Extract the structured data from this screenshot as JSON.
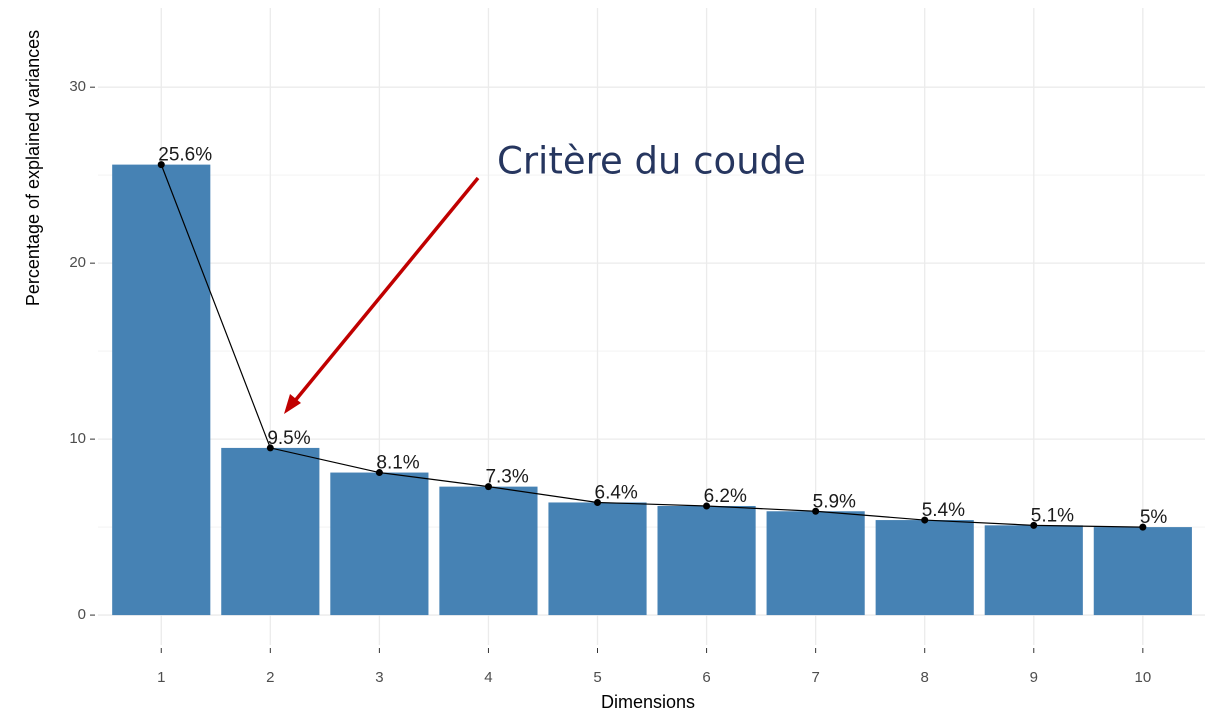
{
  "chart_data": {
    "type": "bar",
    "categories": [
      "1",
      "2",
      "3",
      "4",
      "5",
      "6",
      "7",
      "8",
      "9",
      "10"
    ],
    "values": [
      25.6,
      9.5,
      8.1,
      7.3,
      6.4,
      6.2,
      5.9,
      5.4,
      5.1,
      5
    ],
    "value_labels": [
      "25.6%",
      "9.5%",
      "8.1%",
      "7.3%",
      "6.4%",
      "6.2%",
      "5.9%",
      "5.4%",
      "5.1%",
      "5%"
    ],
    "color": "#4682b4",
    "line_color": "#000000",
    "ylim": [
      -1.7,
      34.5
    ],
    "yticks": [
      0,
      10,
      20,
      30
    ],
    "grid": true,
    "xlabel": "Dimensions",
    "ylabel": "Percentage of explained variances",
    "annotation": "Critère du coude"
  }
}
